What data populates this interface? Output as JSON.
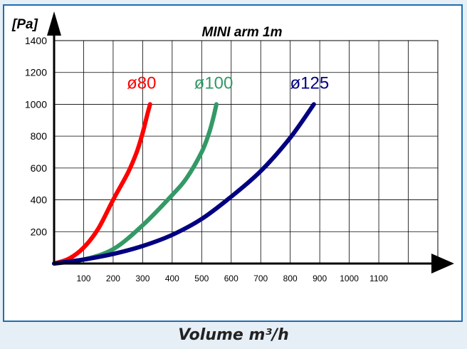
{
  "chart_data": {
    "type": "line",
    "title": "MINI arm 1m",
    "ylabel": "[Pa]",
    "xlabel": "Volume m³/h",
    "xlim": [
      0,
      1300
    ],
    "ylim": [
      0,
      1400
    ],
    "x_ticks": [
      100,
      200,
      300,
      400,
      500,
      600,
      700,
      800,
      900,
      1000,
      1100
    ],
    "y_ticks": [
      200,
      400,
      600,
      800,
      1000,
      1200,
      1400
    ],
    "grid": true,
    "series": [
      {
        "name": "ø80",
        "color": "#ff0000",
        "points": [
          [
            0,
            0
          ],
          [
            50,
            30
          ],
          [
            100,
            100
          ],
          [
            150,
            220
          ],
          [
            200,
            400
          ],
          [
            250,
            570
          ],
          [
            280,
            700
          ],
          [
            300,
            820
          ],
          [
            315,
            930
          ],
          [
            325,
            1000
          ]
        ]
      },
      {
        "name": "ø100",
        "color": "#339966",
        "points": [
          [
            0,
            0
          ],
          [
            100,
            25
          ],
          [
            200,
            90
          ],
          [
            300,
            240
          ],
          [
            400,
            430
          ],
          [
            450,
            540
          ],
          [
            500,
            700
          ],
          [
            525,
            820
          ],
          [
            540,
            920
          ],
          [
            550,
            1000
          ]
        ]
      },
      {
        "name": "ø125",
        "color": "#000080",
        "points": [
          [
            0,
            0
          ],
          [
            100,
            25
          ],
          [
            200,
            60
          ],
          [
            300,
            110
          ],
          [
            400,
            180
          ],
          [
            500,
            280
          ],
          [
            600,
            420
          ],
          [
            700,
            580
          ],
          [
            800,
            790
          ],
          [
            880,
            1000
          ]
        ]
      }
    ]
  }
}
